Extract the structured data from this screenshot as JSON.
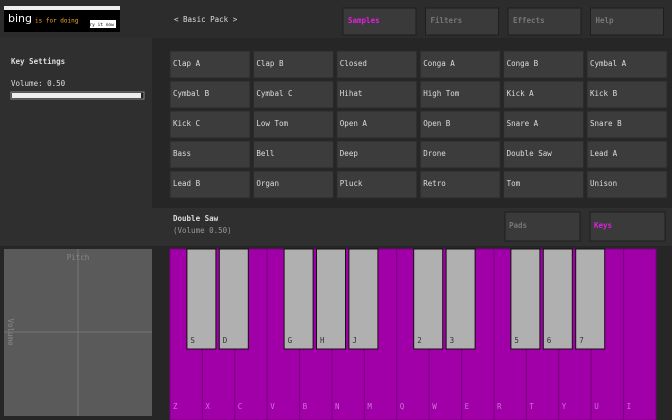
{
  "ad": {
    "brand": "bing",
    "tagline": "is for doing",
    "cta": "Try it now »"
  },
  "pack_label": "< Basic Pack >",
  "tabs": [
    "Samples",
    "Filters",
    "Effects",
    "Help"
  ],
  "key_settings": {
    "title": "Key Settings",
    "volume_label": "Volume: 0.50"
  },
  "pads": [
    [
      "Clap A",
      "Clap B",
      "Closed",
      "Conga A",
      "Conga B",
      "Cymbal A"
    ],
    [
      "Cymbal B",
      "Cymbal C",
      "Hihat",
      "High Tom",
      "Kick A",
      "Kick B"
    ],
    [
      "Kick C",
      "Low Tom",
      "Open A",
      "Open B",
      "Snare A",
      "Snare B"
    ],
    [
      "Bass",
      "Bell",
      "Deep",
      "Drone",
      "Double Saw",
      "Lead A"
    ],
    [
      "Lead B",
      "Organ",
      "Pluck",
      "Retro",
      "Tom",
      "Unison"
    ]
  ],
  "selected": {
    "name": "Double Saw",
    "detail": "(Volume 0.50)"
  },
  "modes": [
    "Pads",
    "Keys"
  ],
  "xy_pad": {
    "x_label": "Pitch",
    "y_label": "Volume"
  },
  "keyboard": {
    "white_keys": [
      "Z",
      "X",
      "C",
      "V",
      "B",
      "N",
      "M",
      "Q",
      "W",
      "E",
      "R",
      "T",
      "Y",
      "U",
      "I"
    ],
    "black_keys": [
      "S",
      "D",
      "G",
      "H",
      "J",
      "2",
      "3",
      "5",
      "6",
      "7"
    ]
  }
}
